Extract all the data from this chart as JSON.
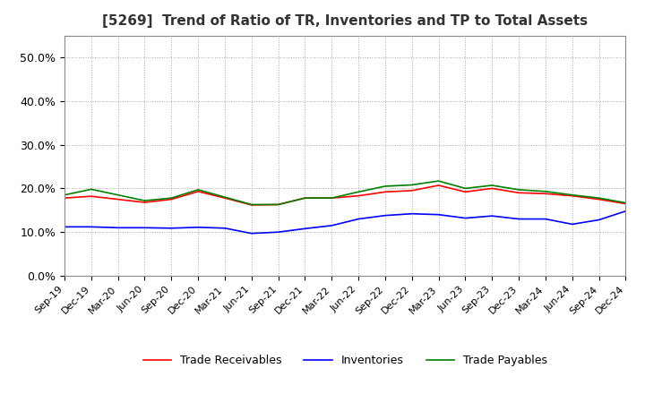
{
  "title": "[5269]  Trend of Ratio of TR, Inventories and TP to Total Assets",
  "ylim": [
    0.0,
    0.55
  ],
  "yticks": [
    0.0,
    0.1,
    0.2,
    0.3,
    0.4,
    0.5
  ],
  "ytick_labels": [
    "0.0%",
    "10.0%",
    "20.0%",
    "30.0%",
    "40.0%",
    "50.0%"
  ],
  "legend_entries": [
    "Trade Receivables",
    "Inventories",
    "Trade Payables"
  ],
  "line_colors": [
    "#ff0000",
    "#0000ff",
    "#008000"
  ],
  "background_color": "#ffffff",
  "grid_color": "#aaaaaa",
  "x_labels": [
    "Sep-19",
    "Dec-19",
    "Mar-20",
    "Jun-20",
    "Sep-20",
    "Dec-20",
    "Mar-21",
    "Jun-21",
    "Sep-21",
    "Dec-21",
    "Mar-22",
    "Jun-22",
    "Sep-22",
    "Dec-22",
    "Mar-23",
    "Jun-23",
    "Sep-23",
    "Dec-23",
    "Mar-24",
    "Jun-24",
    "Sep-24",
    "Dec-24"
  ],
  "trade_receivables": [
    0.178,
    0.182,
    0.175,
    0.168,
    0.175,
    0.193,
    0.178,
    0.162,
    0.163,
    0.178,
    0.178,
    0.183,
    0.192,
    0.195,
    0.207,
    0.192,
    0.2,
    0.19,
    0.188,
    0.183,
    0.175,
    0.165
  ],
  "inventories": [
    0.112,
    0.112,
    0.11,
    0.11,
    0.109,
    0.111,
    0.109,
    0.097,
    0.1,
    0.108,
    0.115,
    0.13,
    0.138,
    0.142,
    0.14,
    0.132,
    0.137,
    0.13,
    0.13,
    0.118,
    0.128,
    0.148
  ],
  "trade_payables": [
    0.185,
    0.198,
    0.185,
    0.172,
    0.178,
    0.197,
    0.18,
    0.163,
    0.163,
    0.178,
    0.178,
    0.192,
    0.205,
    0.208,
    0.217,
    0.2,
    0.207,
    0.197,
    0.193,
    0.185,
    0.178,
    0.167
  ]
}
